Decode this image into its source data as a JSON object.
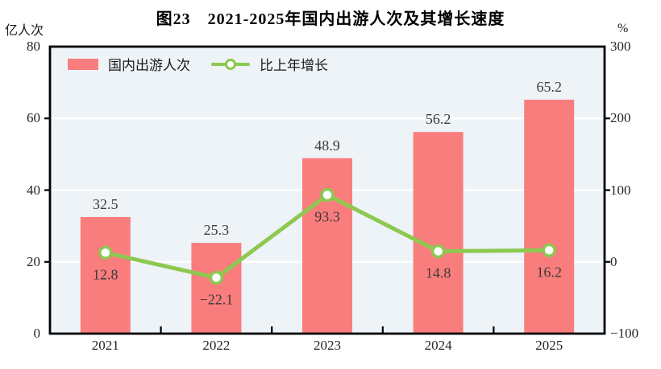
{
  "title": "图23　2021-2025年国内出游人次及其增长速度",
  "left_axis": {
    "unit": "亿人次",
    "ticks": [
      80,
      60,
      40,
      20,
      0
    ],
    "grid_values": [
      60,
      40,
      20
    ]
  },
  "right_axis": {
    "unit": "%",
    "ticks": [
      300,
      200,
      100,
      0,
      -100
    ]
  },
  "legend": {
    "bar_label": "国内出游人次",
    "line_label": "比上年增长"
  },
  "colors": {
    "bar": "#f97d7c",
    "line": "#8dc850",
    "marker_fill": "#ffffff",
    "plot_bg": "#edf3f7",
    "grid": "#ffffff",
    "axis": "#000000",
    "value_label": "#3b3b3b"
  },
  "chart_data": {
    "type": "bar",
    "categories": [
      "2021",
      "2022",
      "2023",
      "2024",
      "2025"
    ],
    "series": [
      {
        "name": "国内出游人次",
        "type": "bar",
        "axis": "left",
        "values": [
          32.5,
          25.3,
          48.9,
          56.2,
          65.2
        ]
      },
      {
        "name": "比上年增长",
        "type": "line",
        "axis": "right",
        "values": [
          12.8,
          -22.1,
          93.3,
          14.8,
          16.2
        ]
      }
    ],
    "title": "图23　2021-2025年国内出游人次及其增长速度",
    "ylabel_left": "亿人次",
    "ylabel_right": "%",
    "left_ylim": [
      0,
      80
    ],
    "right_ylim": [
      -100,
      300
    ],
    "grid": "horizontal-white",
    "legend_position": "top-left-inside"
  }
}
